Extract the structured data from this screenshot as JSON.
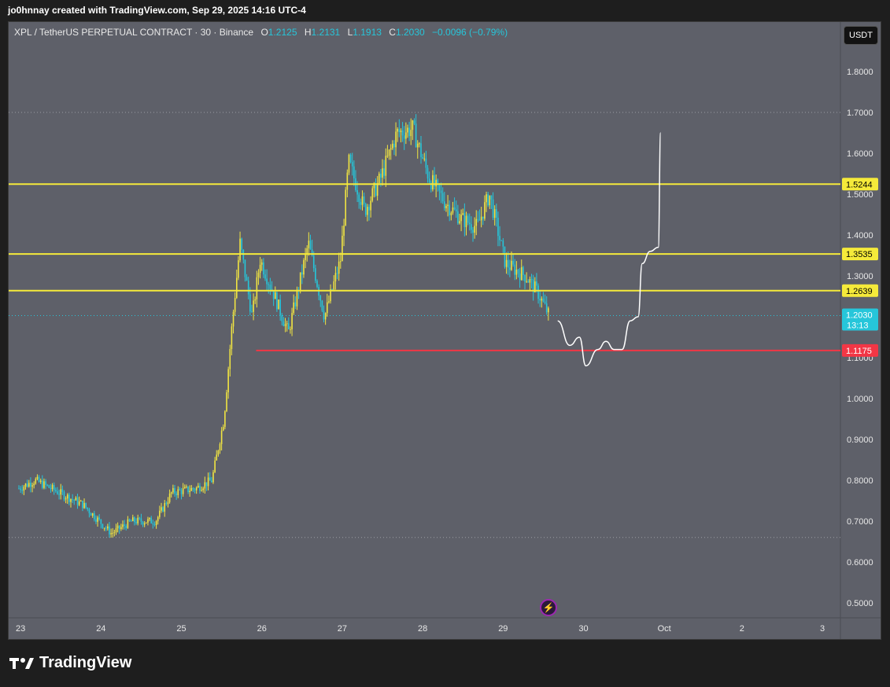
{
  "header": {
    "attribution": "jo0hnnay created with TradingView.com, Sep 29, 2025 14:16 UTC-4"
  },
  "legend": {
    "symbol": "XPL / TetherUS PERPETUAL CONTRACT · 30 · Binance",
    "open_label": "O",
    "open": "1.2125",
    "high_label": "H",
    "high": "1.2131",
    "low_label": "L",
    "low": "1.1913",
    "close_label": "C",
    "close": "1.2030",
    "change": "−0.0096 (−0.79%)"
  },
  "currency_button": "USDT",
  "footer": {
    "brand": "TradingView"
  },
  "colors": {
    "background": "#5e6069",
    "up": "#f0e442",
    "down": "#26c6da",
    "level": "#f5ea3a",
    "support": "#f23645",
    "projection": "#ffffff"
  },
  "chart_data": {
    "type": "candlestick",
    "ylim": [
      0.45,
      1.89
    ],
    "y_ticks": [
      "1.8000",
      "1.7000",
      "1.6000",
      "1.5000",
      "1.4000",
      "1.3000",
      "1.2000",
      "1.1000",
      "1.0000",
      "0.9000",
      "0.8000",
      "0.7000",
      "0.6000",
      "0.5000"
    ],
    "x_ticks": [
      "23",
      "24",
      "25",
      "26",
      "27",
      "28",
      "29",
      "30",
      "Oct",
      "2",
      "3"
    ],
    "horizontal_levels": [
      {
        "label": "1.5244",
        "value": 1.5244,
        "color": "#f5ea3a"
      },
      {
        "label": "1.3535",
        "value": 1.3535,
        "color": "#f5ea3a"
      },
      {
        "label": "1.2639",
        "value": 1.2639,
        "color": "#f5ea3a"
      }
    ],
    "support_level": {
      "label": "1.1175",
      "value": 1.1175,
      "from_day": 25.95
    },
    "last_price": {
      "label": "1.2030",
      "value": 1.203,
      "countdown": "13:13"
    },
    "visible_range_high": 1.7,
    "visible_range_low": 0.66,
    "price_path": [
      {
        "day": 23.0,
        "price": 0.78
      },
      {
        "day": 23.2,
        "price": 0.8
      },
      {
        "day": 23.5,
        "price": 0.77
      },
      {
        "day": 23.8,
        "price": 0.74
      },
      {
        "day": 24.0,
        "price": 0.7
      },
      {
        "day": 24.15,
        "price": 0.67
      },
      {
        "day": 24.4,
        "price": 0.7
      },
      {
        "day": 24.7,
        "price": 0.7
      },
      {
        "day": 24.9,
        "price": 0.77
      },
      {
        "day": 25.2,
        "price": 0.78
      },
      {
        "day": 25.4,
        "price": 0.8
      },
      {
        "day": 25.55,
        "price": 0.95
      },
      {
        "day": 25.65,
        "price": 1.18
      },
      {
        "day": 25.75,
        "price": 1.38
      },
      {
        "day": 25.9,
        "price": 1.2
      },
      {
        "day": 26.0,
        "price": 1.34
      },
      {
        "day": 26.2,
        "price": 1.24
      },
      {
        "day": 26.35,
        "price": 1.16
      },
      {
        "day": 26.6,
        "price": 1.38
      },
      {
        "day": 26.8,
        "price": 1.2
      },
      {
        "day": 27.0,
        "price": 1.34
      },
      {
        "day": 27.1,
        "price": 1.58
      },
      {
        "day": 27.3,
        "price": 1.46
      },
      {
        "day": 27.5,
        "price": 1.54
      },
      {
        "day": 27.7,
        "price": 1.65
      },
      {
        "day": 27.9,
        "price": 1.66
      },
      {
        "day": 28.1,
        "price": 1.54
      },
      {
        "day": 28.3,
        "price": 1.48
      },
      {
        "day": 28.5,
        "price": 1.44
      },
      {
        "day": 28.7,
        "price": 1.42
      },
      {
        "day": 28.85,
        "price": 1.5
      },
      {
        "day": 29.05,
        "price": 1.33
      },
      {
        "day": 29.3,
        "price": 1.3
      },
      {
        "day": 29.45,
        "price": 1.26
      },
      {
        "day": 29.6,
        "price": 1.2
      }
    ],
    "projection_path": [
      {
        "day": 29.7,
        "price": 1.19
      },
      {
        "day": 29.85,
        "price": 1.13
      },
      {
        "day": 29.97,
        "price": 1.15
      },
      {
        "day": 30.05,
        "price": 1.08
      },
      {
        "day": 30.2,
        "price": 1.12
      },
      {
        "day": 30.3,
        "price": 1.14
      },
      {
        "day": 30.4,
        "price": 1.12
      },
      {
        "day": 30.5,
        "price": 1.12
      },
      {
        "day": 30.6,
        "price": 1.19
      },
      {
        "day": 30.7,
        "price": 1.2
      },
      {
        "day": 30.75,
        "price": 1.33
      },
      {
        "day": 30.85,
        "price": 1.36
      },
      {
        "day": 30.95,
        "price": 1.37
      },
      {
        "day": 30.98,
        "price": 1.65
      }
    ]
  }
}
